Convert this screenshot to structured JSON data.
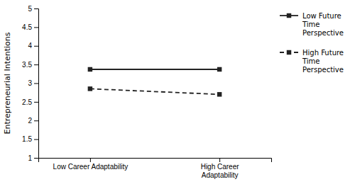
{
  "chart_data": {
    "type": "line",
    "categories": [
      "Low Career Adaptability",
      "High Career\nAdaptability"
    ],
    "series": [
      {
        "name": "Low Future\nTime\nPerspective",
        "color": "#222222",
        "values": [
          3.37,
          3.37
        ],
        "line_style": "solid",
        "marker": "square"
      },
      {
        "name": "High Future\nTime\nPerspective",
        "color": "#222222",
        "values": [
          2.85,
          2.7
        ],
        "line_style": "dashed",
        "marker": "square"
      }
    ],
    "ylabel": "Entrepreneurial Intentions",
    "ylim": [
      1,
      5
    ],
    "yticks": [
      1,
      1.5,
      2,
      2.5,
      3,
      3.5,
      4,
      4.5,
      5
    ],
    "grid": false,
    "legend": "right"
  }
}
